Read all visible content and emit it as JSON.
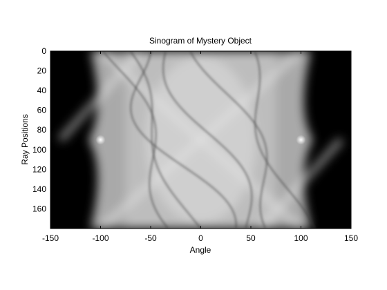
{
  "chart_data": {
    "type": "heatmap",
    "title": "Sinogram of Mystery Object",
    "xlabel": "Angle",
    "ylabel": "Ray Positions",
    "xlim": [
      -150,
      150
    ],
    "ylim": [
      0,
      180
    ],
    "y_reversed": true,
    "x_ticks": [
      -150,
      -100,
      -50,
      0,
      50,
      100,
      150
    ],
    "y_ticks": [
      0,
      20,
      40,
      60,
      80,
      100,
      120,
      140,
      160
    ],
    "colormap": "gray",
    "grid": false,
    "vertex_points": [
      {
        "x": -100,
        "y": 90
      },
      {
        "x": 100,
        "y": 90
      }
    ],
    "dark_curves": [
      {
        "center": -42,
        "amp": 70,
        "half_width": 12,
        "phase": 0.6
      },
      {
        "center": -30,
        "amp": 85,
        "half_width": 28,
        "phase": 2.2
      },
      {
        "center": 10,
        "amp": 80,
        "half_width": 20,
        "phase": 3.4
      },
      {
        "center": 45,
        "amp": 75,
        "half_width": 18,
        "phase": 4.8
      },
      {
        "center": 70,
        "amp": 60,
        "half_width": 14,
        "phase": 1.4
      },
      {
        "center": -55,
        "amp": 65,
        "half_width": 16,
        "phase": 5.6
      }
    ]
  }
}
